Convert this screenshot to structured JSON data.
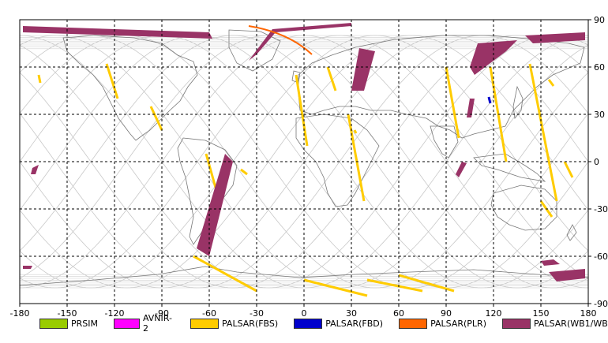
{
  "map": {
    "lon_ticks": [
      "-180",
      "-150",
      "-120",
      "-90",
      "-60",
      "-30",
      "0",
      "30",
      "60",
      "90",
      "120",
      "150",
      "180"
    ],
    "lat_ticks": [
      "90",
      "60",
      "30",
      "0",
      "-30",
      "-60",
      "-90"
    ],
    "lon_range": [
      -180,
      180
    ],
    "lat_range": [
      -90,
      90
    ],
    "grid": "dashed"
  },
  "legend": [
    {
      "label": "PRSIM",
      "color": "#99cc00"
    },
    {
      "label": "AVNIR-2",
      "color": "#ff00ff"
    },
    {
      "label": "PALSAR(FBS)",
      "color": "#ffcc00"
    },
    {
      "label": "PALSAR(FBD)",
      "color": "#0000cc"
    },
    {
      "label": "PALSAR(PLR)",
      "color": "#ff6600"
    },
    {
      "label": "PALSAR(WB1/WB2)",
      "color": "#993366"
    }
  ]
}
